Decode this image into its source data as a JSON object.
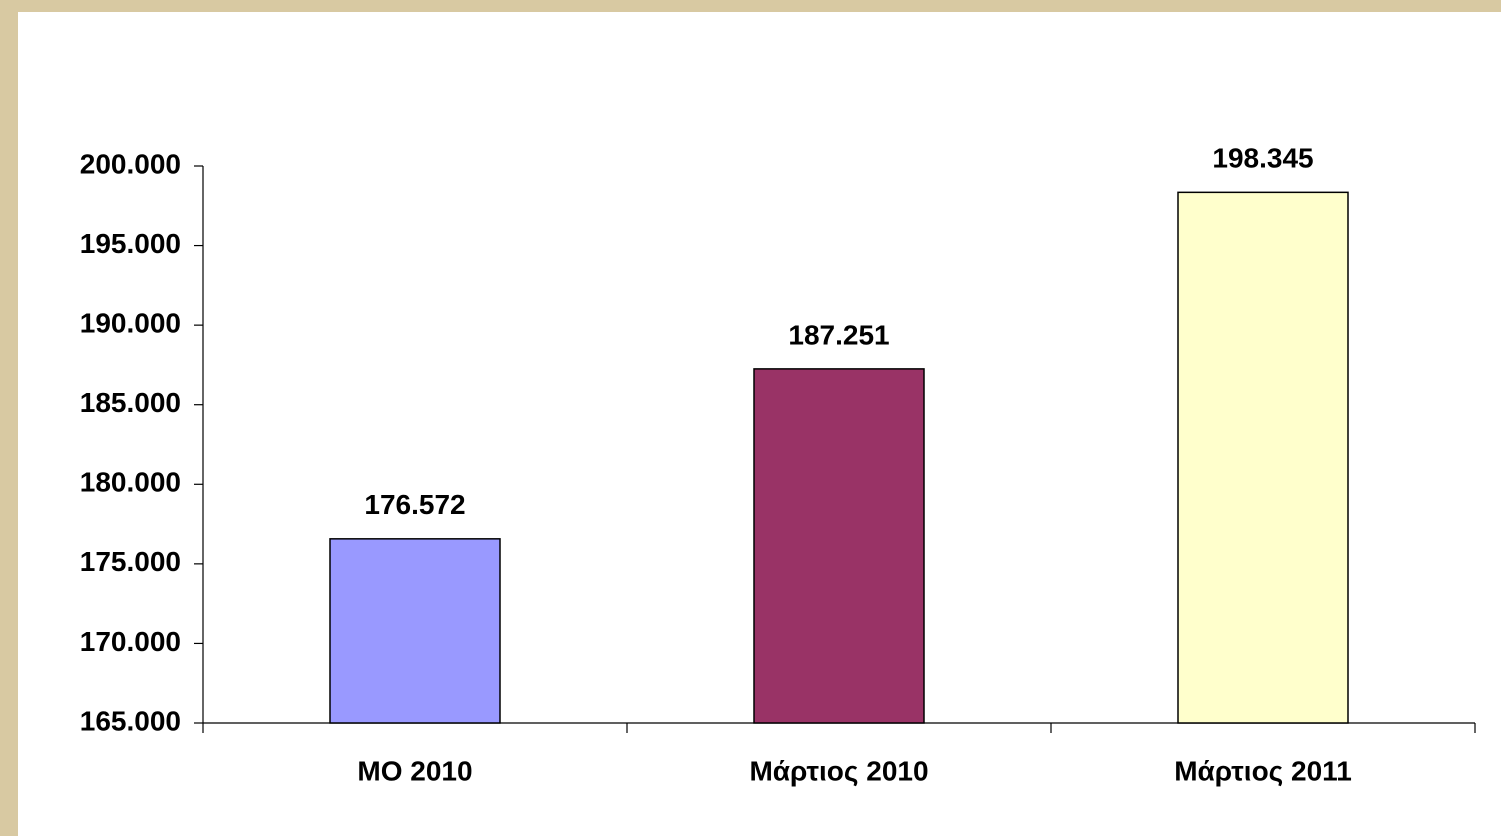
{
  "chart_data": {
    "type": "bar",
    "categories": [
      "ΜΟ 2010",
      "Μάρτιος 2010",
      "Μάρτιος 2011"
    ],
    "values": [
      176572,
      187251,
      198345
    ],
    "value_labels": [
      "176.572",
      "187.251",
      "198.345"
    ],
    "colors": [
      "#9999ff",
      "#993366",
      "#ffffcc"
    ],
    "ylim": [
      165000,
      200000
    ],
    "yticks": [
      {
        "value": 165000,
        "label": "165.000"
      },
      {
        "value": 170000,
        "label": "170.000"
      },
      {
        "value": 175000,
        "label": "175.000"
      },
      {
        "value": 180000,
        "label": "180.000"
      },
      {
        "value": 185000,
        "label": "185.000"
      },
      {
        "value": 190000,
        "label": "190.000"
      },
      {
        "value": 195000,
        "label": "195.000"
      },
      {
        "value": 200000,
        "label": "200.000"
      }
    ]
  }
}
